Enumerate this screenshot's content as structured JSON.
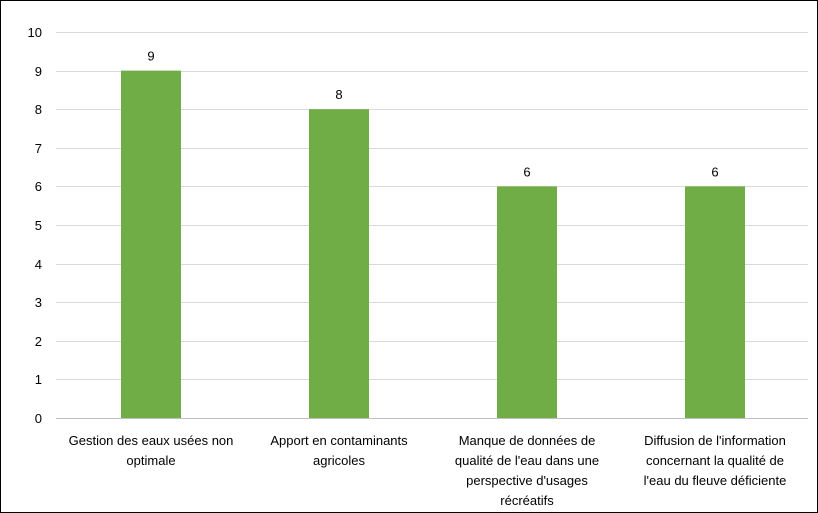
{
  "chart_data": {
    "type": "bar",
    "categories": [
      [
        "Gestion des eaux usées non",
        "optimale"
      ],
      [
        "Apport en contaminants",
        "agricoles"
      ],
      [
        "Manque de données de",
        "qualité de l'eau dans une",
        "perspective d'usages",
        "récréatifs"
      ],
      [
        "Diffusion de l'information",
        "concernant la qualité de",
        "l'eau du fleuve déficiente"
      ]
    ],
    "values": [
      9,
      8,
      6,
      6
    ],
    "data_labels": [
      "9",
      "8",
      "6",
      "6"
    ],
    "title": "",
    "xlabel": "",
    "ylabel": "",
    "ylim": [
      0,
      10
    ],
    "yticks": [
      "0",
      "1",
      "2",
      "3",
      "4",
      "5",
      "6",
      "7",
      "8",
      "9",
      "10"
    ],
    "grid": true,
    "legend": "none",
    "bar_color": "#70ad47",
    "grid_color": "#d9d9d9",
    "axis_color": "#bfbfbf"
  }
}
